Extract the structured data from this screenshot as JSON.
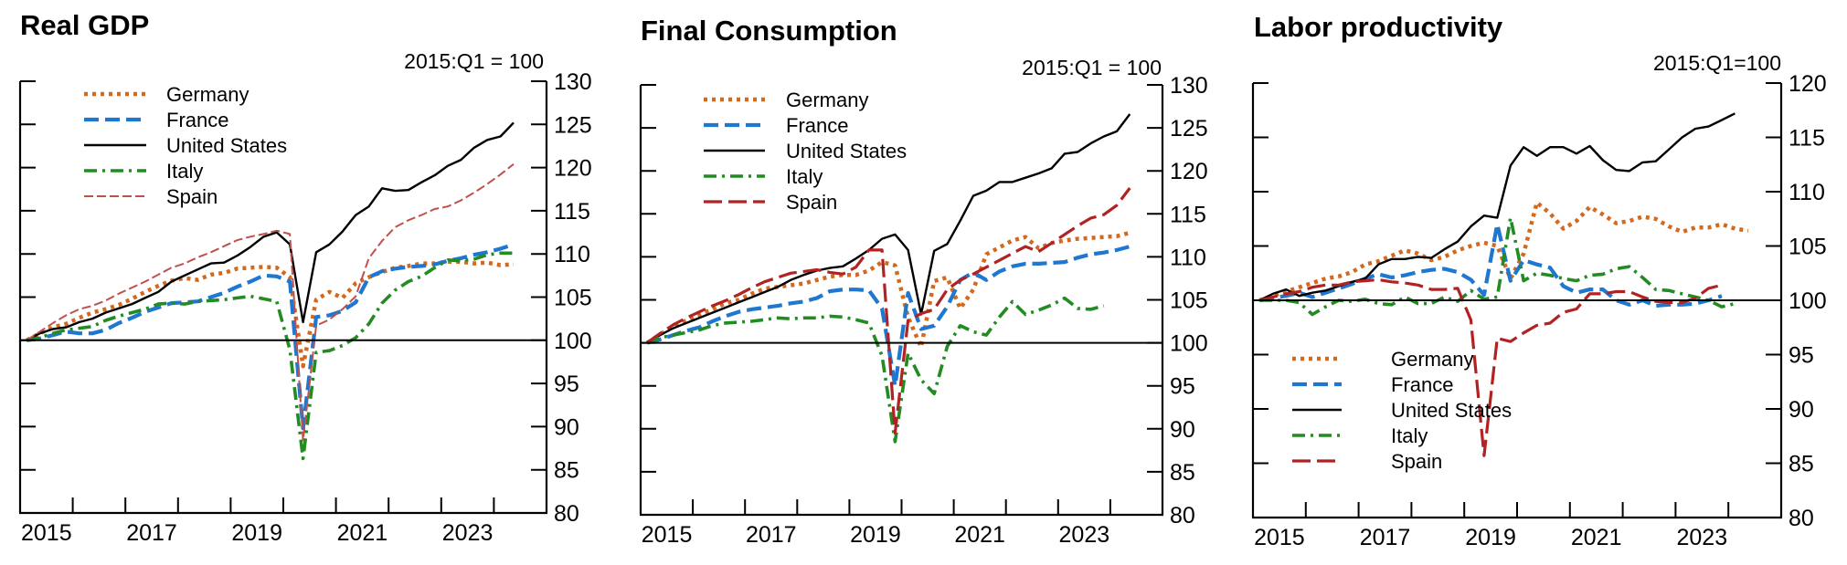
{
  "chart_data": [
    {
      "type": "line",
      "title": "Real GDP",
      "unit_note": "2015:Q1 = 100",
      "xlabel": "",
      "ylabel": "",
      "x_start": "2015:Q1",
      "frequency": "quarterly",
      "x_ticks": [
        "2015",
        "2017",
        "2019",
        "2021",
        "2023"
      ],
      "y_ticks": [
        "80",
        "85",
        "90",
        "95",
        "100",
        "105",
        "110",
        "115",
        "120",
        "125",
        "130"
      ],
      "ylim": [
        80,
        130
      ],
      "xlim": [
        2015,
        2025
      ],
      "reference_line": 100,
      "legend_position": "top-left",
      "series": [
        {
          "name": "Germany",
          "color": "#d2691e",
          "style": "dotted",
          "values": [
            100,
            100.8,
            101.5,
            101.9,
            102.6,
            103.2,
            103.6,
            104.1,
            104.8,
            105.6,
            106.3,
            106.9,
            107.2,
            107.0,
            107.6,
            107.8,
            108.3,
            108.4,
            108.5,
            108.4,
            107.3,
            97.0,
            104.7,
            105.6,
            104.9,
            106.6,
            107.3,
            107.9,
            108.4,
            108.6,
            108.9,
            108.9,
            109.1,
            109.1,
            108.9,
            109.0,
            108.7,
            108.8
          ]
        },
        {
          "name": "France",
          "color": "#1f77d0",
          "style": "dashed",
          "values": [
            100,
            100.2,
            100.6,
            101.0,
            100.8,
            100.8,
            101.2,
            102.0,
            102.6,
            103.3,
            103.8,
            104.3,
            104.4,
            104.5,
            105.0,
            105.5,
            106.2,
            106.8,
            107.5,
            107.4,
            106.8,
            89.8,
            102.7,
            102.9,
            103.4,
            104.4,
            107.3,
            108.0,
            108.3,
            108.5,
            108.6,
            108.8,
            109.2,
            109.5,
            109.9,
            110.2,
            110.6,
            111.1
          ]
        },
        {
          "name": "United States",
          "color": "#000000",
          "style": "solid",
          "values": [
            100,
            100.8,
            101.3,
            101.5,
            102.1,
            102.5,
            103.2,
            103.7,
            104.2,
            104.9,
            105.6,
            106.8,
            107.5,
            108.2,
            108.9,
            109.0,
            109.8,
            110.8,
            112.0,
            112.5,
            111.1,
            102.1,
            110.2,
            111.1,
            112.6,
            114.5,
            115.5,
            117.6,
            117.3,
            117.4,
            118.3,
            119.1,
            120.2,
            120.9,
            122.3,
            123.2,
            123.6,
            125.2
          ]
        },
        {
          "name": "Italy",
          "color": "#228b22",
          "style": "dashdot",
          "values": [
            100,
            100.3,
            100.8,
            101.2,
            101.4,
            101.6,
            102.3,
            102.8,
            103.2,
            103.6,
            104.2,
            104.3,
            104.2,
            104.5,
            104.6,
            104.7,
            104.9,
            105.1,
            104.8,
            104.5,
            98.9,
            86.3,
            98.6,
            98.8,
            99.4,
            100.3,
            101.9,
            104.3,
            105.8,
            106.8,
            107.4,
            108.4,
            109.3,
            109.2,
            109.4,
            109.9,
            110.1,
            110.1
          ]
        },
        {
          "name": "Spain",
          "color": "#c0504d",
          "style": "dashed-thin",
          "values": [
            100,
            101.0,
            102.0,
            102.9,
            103.6,
            104.0,
            104.6,
            105.4,
            106.1,
            106.8,
            107.6,
            108.4,
            108.9,
            109.6,
            110.2,
            110.9,
            111.6,
            112.0,
            112.3,
            112.7,
            112.3,
            88.4,
            101.7,
            102.4,
            103.6,
            105.1,
            109.5,
            111.5,
            113.1,
            113.9,
            114.5,
            115.2,
            115.5,
            116.2,
            117.1,
            118.1,
            119.2,
            120.4
          ]
        }
      ]
    },
    {
      "type": "line",
      "title": "Final Consumption",
      "unit_note": "2015:Q1 = 100",
      "xlabel": "",
      "ylabel": "",
      "x_start": "2015:Q1",
      "frequency": "quarterly",
      "x_ticks": [
        "2015",
        "2017",
        "2019",
        "2021",
        "2023"
      ],
      "y_ticks": [
        "80",
        "85",
        "90",
        "95",
        "100",
        "105",
        "110",
        "115",
        "120",
        "125",
        "130"
      ],
      "ylim": [
        80,
        130
      ],
      "xlim": [
        2015,
        2025
      ],
      "reference_line": 100,
      "legend_position": "top-left",
      "series": [
        {
          "name": "Germany",
          "color": "#d2691e",
          "style": "dotted",
          "values": [
            100,
            101.0,
            101.9,
            102.6,
            103.3,
            103.9,
            104.6,
            105.0,
            105.7,
            106.3,
            106.5,
            106.7,
            106.9,
            107.3,
            107.7,
            107.9,
            107.9,
            108.4,
            109.4,
            109.0,
            103.0,
            99.5,
            107.2,
            107.6,
            104.0,
            106.2,
            110.3,
            111.1,
            111.9,
            112.3,
            111.0,
            111.6,
            111.9,
            112.1,
            112.2,
            112.3,
            112.4,
            112.8
          ]
        },
        {
          "name": "France",
          "color": "#1f77d0",
          "style": "dashed",
          "values": [
            100,
            100.4,
            100.9,
            101.4,
            101.8,
            102.5,
            103.1,
            103.6,
            103.9,
            104.1,
            104.3,
            104.6,
            104.8,
            105.2,
            106.0,
            106.2,
            106.2,
            106.1,
            104.0,
            95.0,
            105.8,
            101.6,
            102.0,
            104.2,
            107.3,
            108.2,
            107.3,
            108.3,
            108.9,
            109.2,
            109.2,
            109.3,
            109.4,
            109.9,
            110.3,
            110.5,
            110.8,
            111.2
          ]
        },
        {
          "name": "United States",
          "color": "#000000",
          "style": "solid",
          "values": [
            100,
            100.9,
            101.7,
            102.3,
            102.9,
            103.5,
            104.1,
            104.7,
            105.3,
            105.9,
            106.5,
            107.3,
            107.9,
            108.4,
            108.7,
            108.9,
            109.8,
            110.8,
            112.1,
            112.6,
            110.8,
            103.3,
            110.7,
            111.5,
            114.2,
            117.1,
            117.7,
            118.7,
            118.7,
            119.2,
            119.7,
            120.3,
            122.0,
            122.2,
            123.2,
            124.0,
            124.6,
            126.6
          ]
        },
        {
          "name": "Italy",
          "color": "#228b22",
          "style": "dashdot",
          "values": [
            100,
            100.6,
            100.9,
            101.2,
            101.5,
            102.0,
            102.3,
            102.4,
            102.5,
            102.7,
            102.9,
            102.8,
            102.9,
            102.9,
            103.1,
            103.0,
            102.7,
            102.3,
            98.5,
            88.5,
            98.8,
            95.7,
            94.1,
            99.6,
            102.0,
            101.3,
            100.9,
            103.0,
            104.8,
            103.3,
            103.8,
            104.4,
            105.2,
            104.0,
            103.9,
            104.3
          ]
        },
        {
          "name": "Spain",
          "color": "#b22222",
          "style": "dashed-bold",
          "values": [
            100,
            101.1,
            102.1,
            102.9,
            103.6,
            104.3,
            104.9,
            105.6,
            106.4,
            107.1,
            107.6,
            108.1,
            108.3,
            108.5,
            108.2,
            108.0,
            108.8,
            110.8,
            110.8,
            89.5,
            102.6,
            103.4,
            103.9,
            106.2,
            107.3,
            108.0,
            108.8,
            109.6,
            110.4,
            111.2,
            110.6,
            111.6,
            112.6,
            113.6,
            114.5,
            114.9,
            116.0,
            118.0
          ]
        }
      ]
    },
    {
      "type": "line",
      "title": "Labor productivity",
      "unit_note": "2015:Q1=100",
      "xlabel": "",
      "ylabel": "",
      "x_start": "2015:Q1",
      "frequency": "quarterly",
      "x_ticks": [
        "2015",
        "2017",
        "2019",
        "2021",
        "2023"
      ],
      "y_ticks": [
        "80",
        "85",
        "90",
        "95",
        "100",
        "105",
        "110",
        "115",
        "120"
      ],
      "ylim": [
        80,
        120
      ],
      "xlim": [
        2015,
        2025
      ],
      "reference_line": 100,
      "legend_position": "bottom-left",
      "series": [
        {
          "name": "Germany",
          "color": "#d2691e",
          "style": "dotted",
          "values": [
            100,
            100.4,
            100.8,
            101.2,
            101.6,
            102.0,
            102.2,
            102.6,
            103.3,
            103.6,
            104.1,
            104.6,
            104.3,
            103.7,
            104.0,
            104.6,
            105.0,
            105.3,
            105.0,
            102.0,
            104.3,
            109.0,
            108.0,
            106.6,
            107.3,
            108.6,
            107.9,
            107.1,
            107.3,
            107.7,
            107.5,
            106.8,
            106.3,
            106.7,
            106.7,
            107.0,
            106.6,
            106.4
          ]
        },
        {
          "name": "France",
          "color": "#1f77d0",
          "style": "dashed",
          "values": [
            100,
            100.2,
            100.4,
            100.7,
            100.3,
            100.7,
            101.1,
            101.5,
            102.0,
            102.4,
            102.1,
            102.3,
            102.6,
            102.8,
            102.9,
            102.6,
            101.9,
            100.5,
            107.0,
            101.8,
            103.7,
            103.3,
            103.0,
            101.3,
            100.7,
            101.0,
            101.0,
            100.0,
            99.6,
            100.0,
            99.5,
            99.6,
            99.6,
            99.7,
            100.0,
            100.4
          ]
        },
        {
          "name": "United States",
          "color": "#000000",
          "style": "solid",
          "values": [
            100,
            100.6,
            101.0,
            100.4,
            100.7,
            100.9,
            101.3,
            101.7,
            102.0,
            103.3,
            103.8,
            103.8,
            104.0,
            103.9,
            104.7,
            105.4,
            106.8,
            107.8,
            107.6,
            112.4,
            114.1,
            113.3,
            114.1,
            114.1,
            113.5,
            114.2,
            112.9,
            112.0,
            111.9,
            112.7,
            112.8,
            113.9,
            115.0,
            115.8,
            116.0,
            116.6,
            117.2
          ]
        },
        {
          "name": "Italy",
          "color": "#228b22",
          "style": "dashdot",
          "values": [
            100,
            100.0,
            100.0,
            99.8,
            98.7,
            99.4,
            100.0,
            99.9,
            100.1,
            99.7,
            99.6,
            100.3,
            99.7,
            99.7,
            100.3,
            99.9,
            100.9,
            100.1,
            100.3,
            107.6,
            101.8,
            102.5,
            102.3,
            102.0,
            101.8,
            102.3,
            102.4,
            102.9,
            103.1,
            102.1,
            101.0,
            100.9,
            100.6,
            100.3,
            100.0,
            99.4,
            99.7
          ]
        },
        {
          "name": "Spain",
          "color": "#b22222",
          "style": "dashed-bold",
          "values": [
            100,
            100.3,
            100.6,
            100.8,
            101.2,
            101.4,
            101.4,
            101.7,
            101.8,
            101.9,
            101.7,
            101.6,
            101.4,
            101.0,
            101.0,
            101.1,
            98.2,
            85.7,
            96.5,
            96.2,
            97.0,
            97.7,
            97.9,
            98.9,
            99.2,
            100.6,
            100.6,
            100.8,
            100.8,
            100.3,
            99.9,
            99.8,
            99.8,
            100.2,
            101.1,
            101.4
          ]
        }
      ]
    }
  ]
}
